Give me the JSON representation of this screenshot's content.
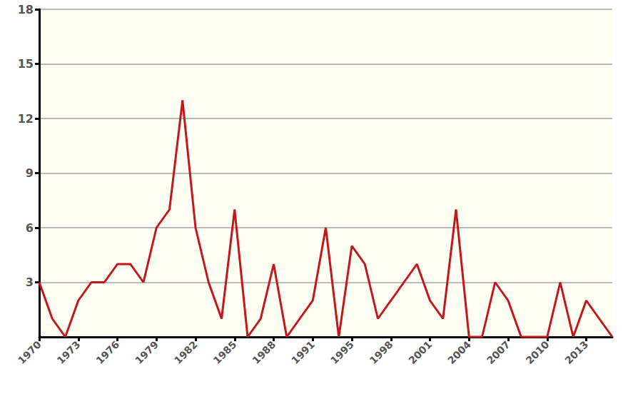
{
  "chart_data": {
    "type": "line",
    "color": "#c4161c",
    "grid": true,
    "categories": [
      "1970",
      null,
      null,
      "1973",
      null,
      null,
      "1976",
      null,
      null,
      "1979",
      null,
      null,
      "1982",
      null,
      null,
      "1985",
      null,
      null,
      "1988",
      null,
      null,
      "1991",
      null,
      null,
      "1995",
      null,
      null,
      "1998",
      null,
      null,
      "2001",
      null,
      null,
      "2004",
      null,
      null,
      "2007",
      null,
      null,
      "2010",
      null,
      null,
      "2013",
      null,
      null
    ],
    "values": [
      3,
      1,
      0,
      2,
      3,
      3,
      4,
      4,
      3,
      6,
      7,
      13,
      6,
      3,
      1,
      7,
      0,
      1,
      4,
      0,
      1,
      2,
      6,
      0,
      5,
      4,
      1,
      2,
      3,
      4,
      2,
      1,
      7,
      0,
      0,
      3,
      2,
      0,
      0,
      0,
      3,
      0,
      2,
      1,
      0
    ],
    "ylim": [
      0,
      18
    ],
    "yticks": [
      3,
      6,
      9,
      12,
      15,
      18
    ]
  }
}
